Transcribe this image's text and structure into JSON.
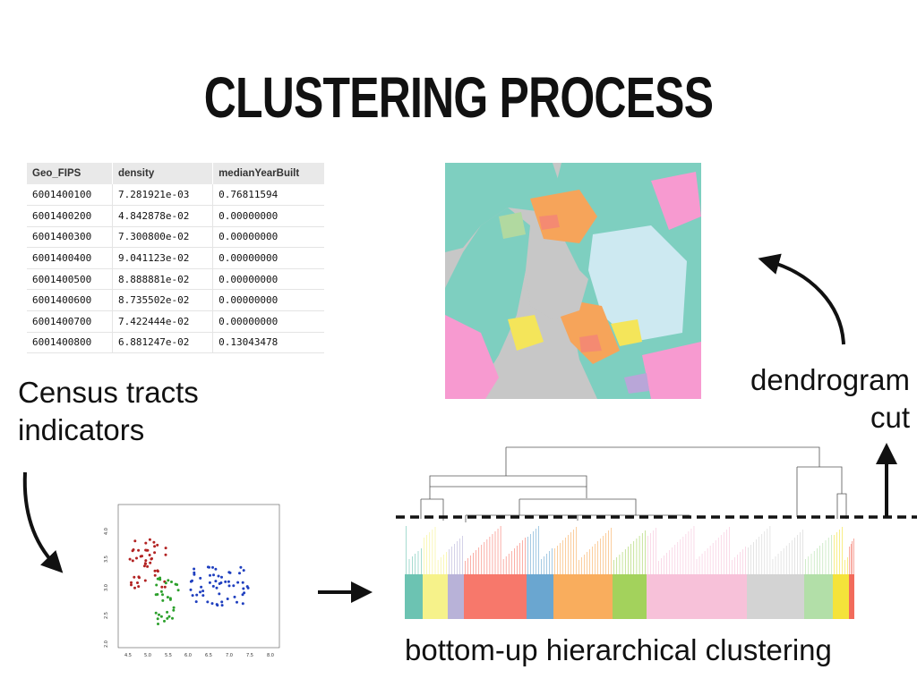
{
  "slide": {
    "title": "CLUSTERING PROCESS"
  },
  "table": {
    "columns": [
      "Geo_FIPS",
      "density",
      "medianYearBuilt"
    ],
    "rows": [
      [
        "6001400100",
        "7.281921e-03",
        "0.76811594"
      ],
      [
        "6001400200",
        "4.842878e-02",
        "0.00000000"
      ],
      [
        "6001400300",
        "7.300800e-02",
        "0.00000000"
      ],
      [
        "6001400400",
        "9.041123e-02",
        "0.00000000"
      ],
      [
        "6001400500",
        "8.888881e-02",
        "0.00000000"
      ],
      [
        "6001400600",
        "8.735502e-02",
        "0.00000000"
      ],
      [
        "6001400700",
        "7.422444e-02",
        "0.00000000"
      ],
      [
        "6001400800",
        "6.881247e-02",
        "0.13043478"
      ]
    ]
  },
  "captions": {
    "census_line1": "Census tracts",
    "census_line2": "indicators",
    "dendrogram_line1": "dendrogram",
    "dendrogram_line2": "cut",
    "bottom": "bottom-up hierarchical clustering"
  },
  "scatter": {
    "x_ticks": [
      "4.5",
      "5.0",
      "5.5",
      "6.0",
      "6.5",
      "7.0",
      "7.5",
      "8.0"
    ],
    "y_ticks": [
      "2.0",
      "2.5",
      "3.0",
      "3.5",
      "4.0"
    ],
    "colors": {
      "red": "#b22222",
      "green": "#2ca02c",
      "blue": "#1f3fbf"
    }
  },
  "dendrogram": {
    "cluster_colors": [
      "#6cc3b2",
      "#f6f28a",
      "#b8b2d8",
      "#f7786b",
      "#6aa6d0",
      "#f9ad5d",
      "#a3d25c",
      "#f7c1d9",
      "#d3d3d3",
      "#b2dfa8",
      "#f4e33a",
      "#f26b5b"
    ]
  },
  "map": {
    "water_color": "#c7c7c7",
    "region_colors": [
      "#7ecfc0",
      "#f4e55a",
      "#f6a45a",
      "#f79ad0",
      "#cde9f1",
      "#b1d9a0",
      "#b9a6d8",
      "#f48a72"
    ]
  }
}
